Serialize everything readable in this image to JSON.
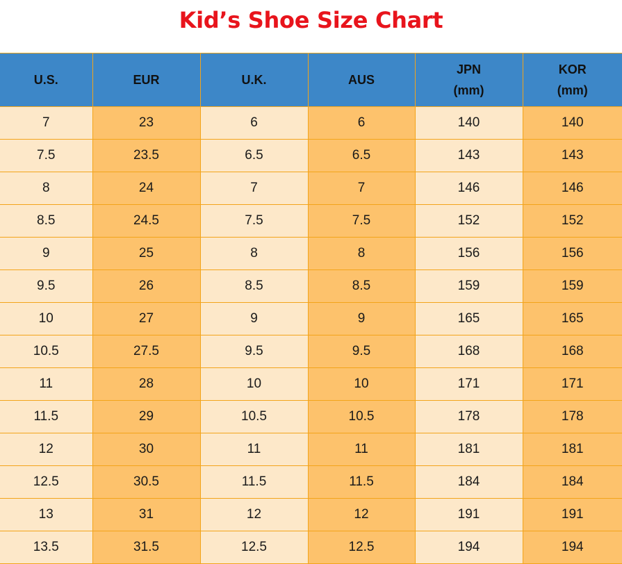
{
  "title": "Kid’s Shoe Size Chart",
  "columns": [
    {
      "line1": "U.S.",
      "line2": ""
    },
    {
      "line1": "EUR",
      "line2": ""
    },
    {
      "line1": "U.K.",
      "line2": ""
    },
    {
      "line1": "AUS",
      "line2": ""
    },
    {
      "line1": "JPN",
      "line2": "(mm)"
    },
    {
      "line1": "KOR",
      "line2": "(mm)"
    }
  ],
  "rows": [
    [
      "7",
      "23",
      "6",
      "6",
      "140",
      "140"
    ],
    [
      "7.5",
      "23.5",
      "6.5",
      "6.5",
      "143",
      "143"
    ],
    [
      "8",
      "24",
      "7",
      "7",
      "146",
      "146"
    ],
    [
      "8.5",
      "24.5",
      "7.5",
      "7.5",
      "152",
      "152"
    ],
    [
      "9",
      "25",
      "8",
      "8",
      "156",
      "156"
    ],
    [
      "9.5",
      "26",
      "8.5",
      "8.5",
      "159",
      "159"
    ],
    [
      "10",
      "27",
      "9",
      "9",
      "165",
      "165"
    ],
    [
      "10.5",
      "27.5",
      "9.5",
      "9.5",
      "168",
      "168"
    ],
    [
      "11",
      "28",
      "10",
      "10",
      "171",
      "171"
    ],
    [
      "11.5",
      "29",
      "10.5",
      "10.5",
      "178",
      "178"
    ],
    [
      "12",
      "30",
      "11",
      "11",
      "181",
      "181"
    ],
    [
      "12.5",
      "30.5",
      "11.5",
      "11.5",
      "184",
      "184"
    ],
    [
      "13",
      "31",
      "12",
      "12",
      "191",
      "191"
    ],
    [
      "13.5",
      "31.5",
      "12.5",
      "12.5",
      "194",
      "194"
    ]
  ],
  "colors": {
    "title": "#e8141c",
    "header_bg": "#3d87c8",
    "cell_light": "#fde8c9",
    "cell_dark": "#fdc26c",
    "grid": "#f3a41a"
  }
}
